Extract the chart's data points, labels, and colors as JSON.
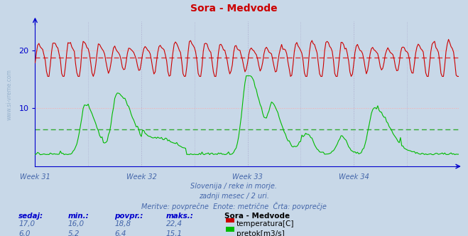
{
  "title": "Sora - Medvode",
  "bg_color": "#c8d8e8",
  "plot_bg_color": "#c8d8e8",
  "grid_color_h": "#ff9999",
  "grid_color_v": "#aaaacc",
  "axis_color": "#0000cc",
  "text_color": "#4466aa",
  "red_color": "#cc0000",
  "green_color": "#00bb00",
  "dashed_red_color": "#dd3333",
  "dashed_green_color": "#33aa33",
  "week_labels": [
    "Week 31",
    "Week 32",
    "Week 33",
    "Week 34"
  ],
  "temp_avg": 18.8,
  "temp_min": 16.0,
  "temp_max": 22.4,
  "flow_avg": 6.4,
  "flow_min_val": 5.2,
  "flow_max": 15.1,
  "ylim": [
    0,
    25
  ],
  "n_points": 336,
  "subtitle1": "Slovenija / reke in morje.",
  "subtitle2": "zadnji mesec / 2 uri.",
  "subtitle3": "Meritve: povprečne  Enote: metrične  Črta: povprečje",
  "legend_title": "Sora - Medvode",
  "legend_row1": [
    "17,0",
    "16,0",
    "18,8",
    "22,4",
    "temperatura[C]"
  ],
  "legend_row2": [
    "6,0",
    "5,2",
    "6,4",
    "15,1",
    "pretok[m3/s]"
  ],
  "col_headers": [
    "sedaj:",
    "min.:",
    "povpr.:",
    "maks.:"
  ]
}
